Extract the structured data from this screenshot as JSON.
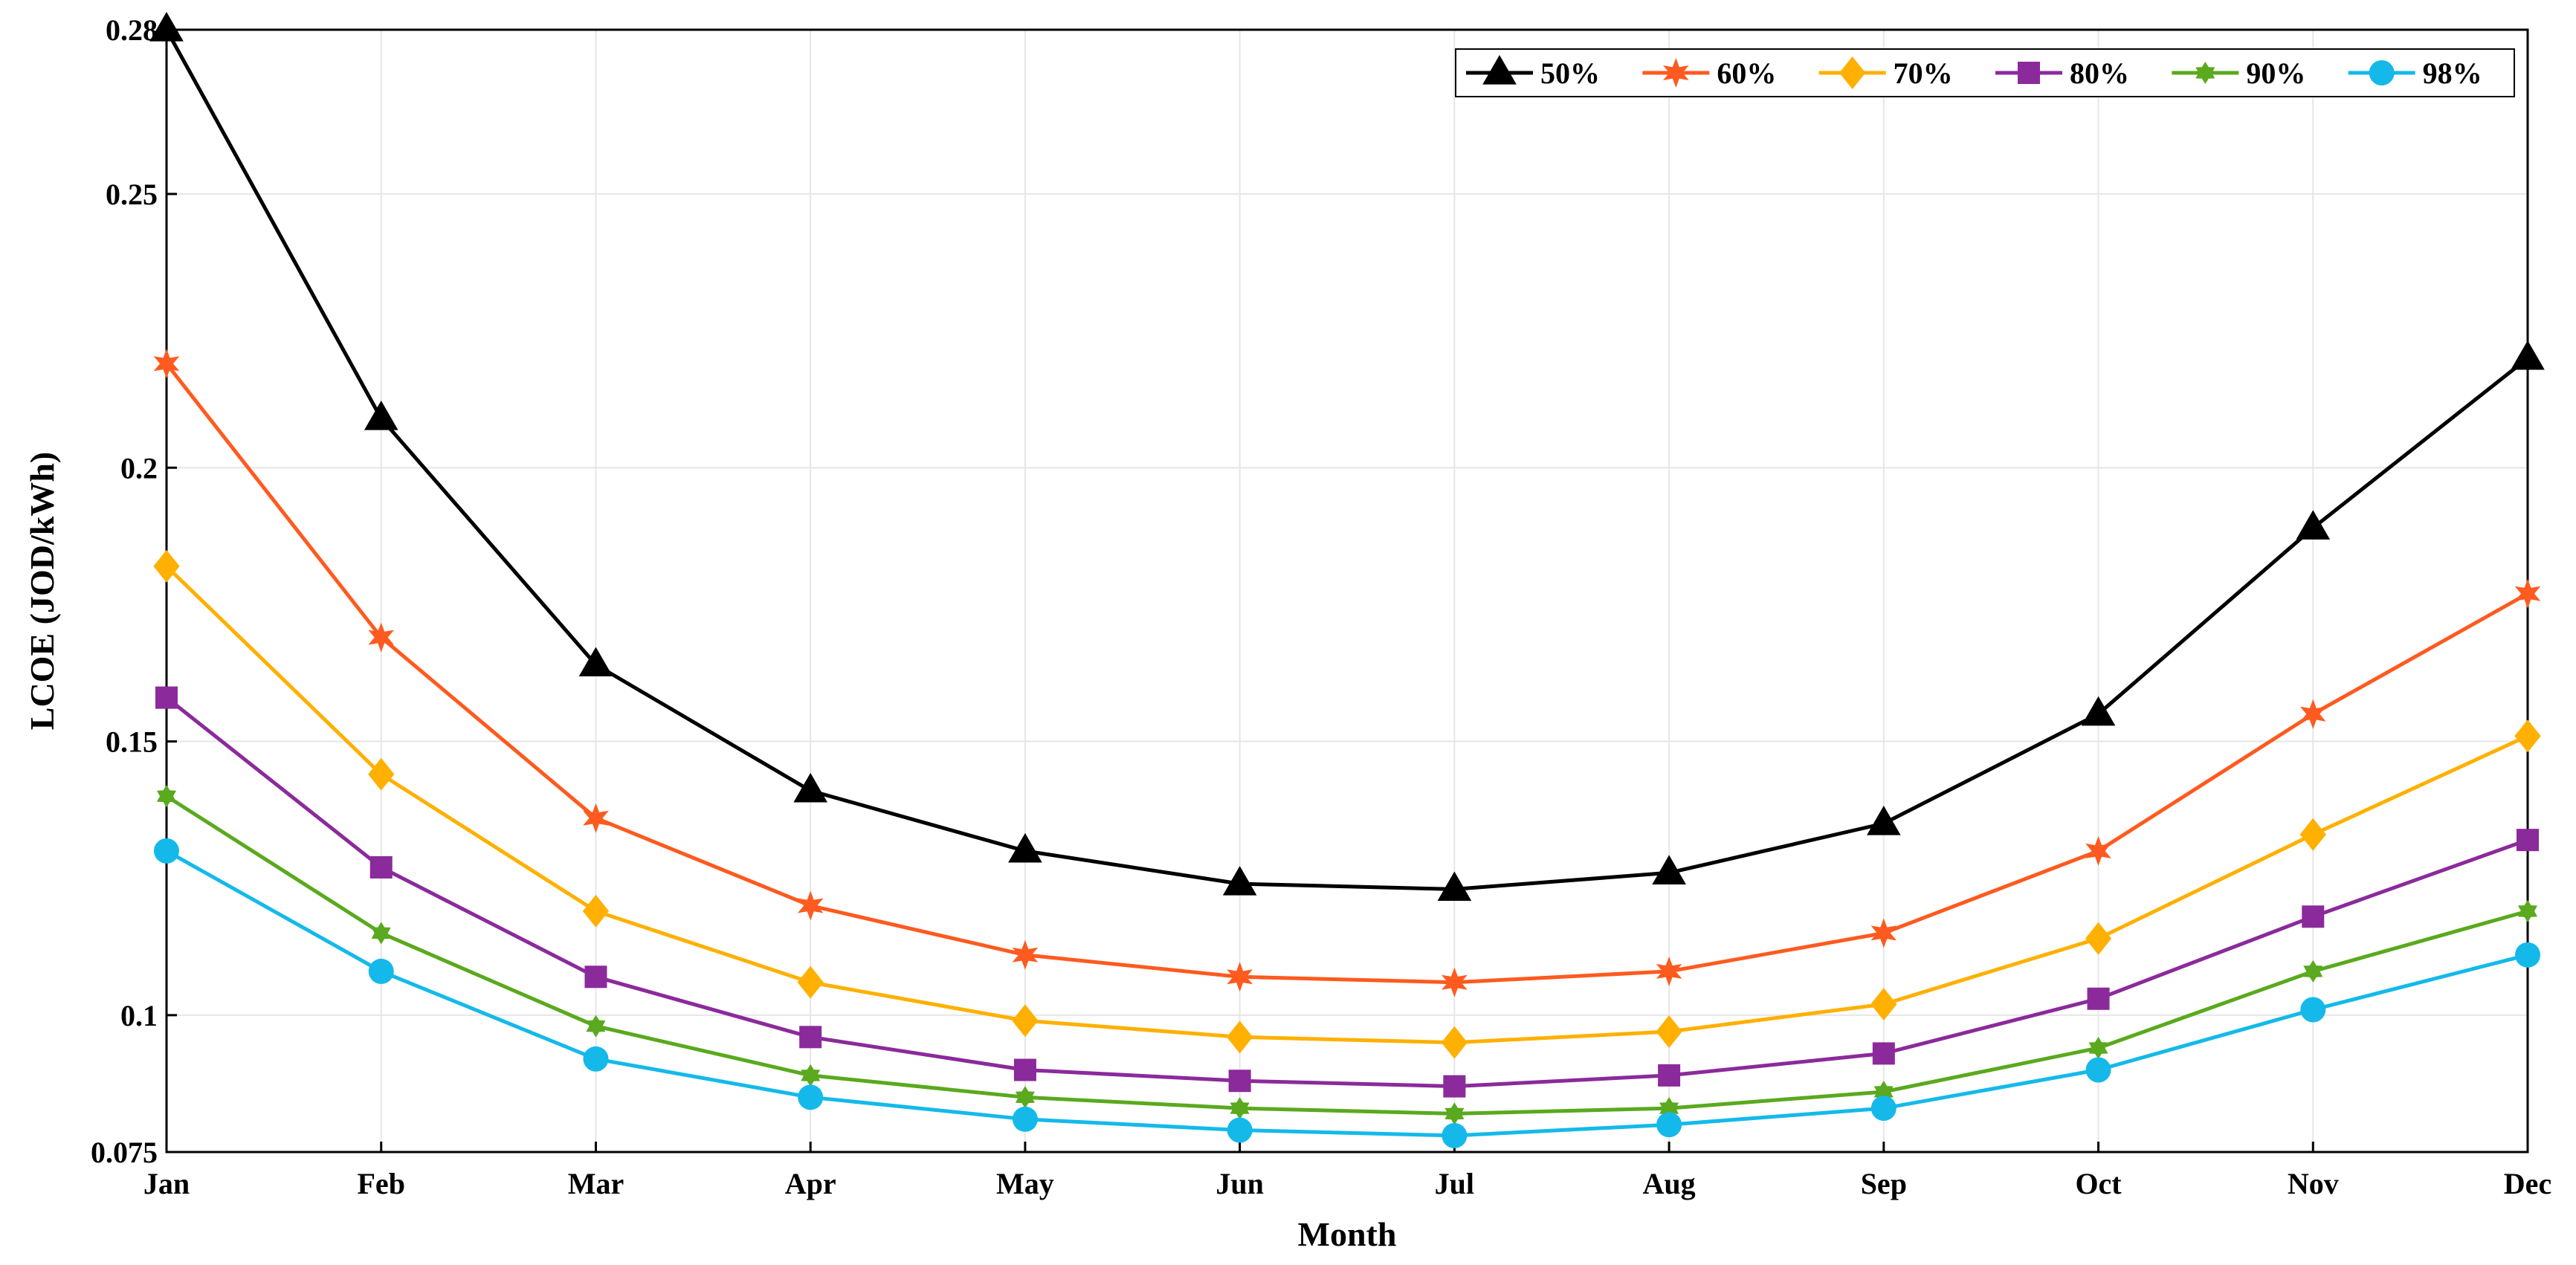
{
  "chart_data": {
    "type": "line",
    "xlabel": "Month",
    "ylabel": "LCOE (JOD/kWh)",
    "categories": [
      "Jan",
      "Feb",
      "Mar",
      "Apr",
      "May",
      "Jun",
      "Jul",
      "Aug",
      "Sep",
      "Oct",
      "Nov",
      "Dec"
    ],
    "ylim": [
      0.075,
      0.28
    ],
    "yticks": [
      0.075,
      0.1,
      0.15,
      0.2,
      0.25,
      0.28
    ],
    "ytick_labels": [
      "0.075",
      "0.1",
      "0.15",
      "0.2",
      "0.25",
      "0.28"
    ],
    "grid": true,
    "legend_position": "top-right",
    "series": [
      {
        "name": "50%",
        "color": "#000000",
        "marker": "triangle",
        "values": [
          0.28,
          0.209,
          0.164,
          0.141,
          0.13,
          0.124,
          0.123,
          0.126,
          0.135,
          0.155,
          0.189,
          0.22
        ]
      },
      {
        "name": "60%",
        "color": "#ff5a1f",
        "marker": "star",
        "values": [
          0.219,
          0.169,
          0.136,
          0.12,
          0.111,
          0.107,
          0.106,
          0.108,
          0.115,
          0.13,
          0.155,
          0.177
        ]
      },
      {
        "name": "70%",
        "color": "#ffb000",
        "marker": "diamond",
        "values": [
          0.182,
          0.144,
          0.119,
          0.106,
          0.099,
          0.096,
          0.095,
          0.097,
          0.102,
          0.114,
          0.133,
          0.151
        ]
      },
      {
        "name": "80%",
        "color": "#8b2a9b",
        "marker": "square",
        "values": [
          0.158,
          0.127,
          0.107,
          0.096,
          0.09,
          0.088,
          0.087,
          0.089,
          0.093,
          0.103,
          0.118,
          0.132
        ]
      },
      {
        "name": "90%",
        "color": "#5aa91e",
        "marker": "hexstar",
        "values": [
          0.14,
          0.115,
          0.098,
          0.089,
          0.085,
          0.083,
          0.082,
          0.083,
          0.086,
          0.094,
          0.108,
          0.119
        ]
      },
      {
        "name": "98%",
        "color": "#14b9ea",
        "marker": "circle",
        "values": [
          0.13,
          0.108,
          0.092,
          0.085,
          0.081,
          0.079,
          0.078,
          0.08,
          0.083,
          0.09,
          0.101,
          0.111
        ]
      }
    ]
  }
}
